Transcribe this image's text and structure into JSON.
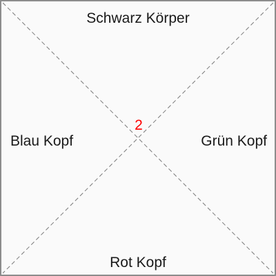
{
  "labels": {
    "top": "Schwarz Körper",
    "left": "Blau Kopf",
    "right": "Grün Kopf",
    "bottom": "Rot Kopf"
  },
  "center": {
    "value": "2",
    "color": "#ff0000"
  },
  "colors": {
    "border": "#8c8c8c",
    "background": "#fafafa",
    "diagonal_lines": "#7a7a7a",
    "text": "#1a1a1a"
  }
}
